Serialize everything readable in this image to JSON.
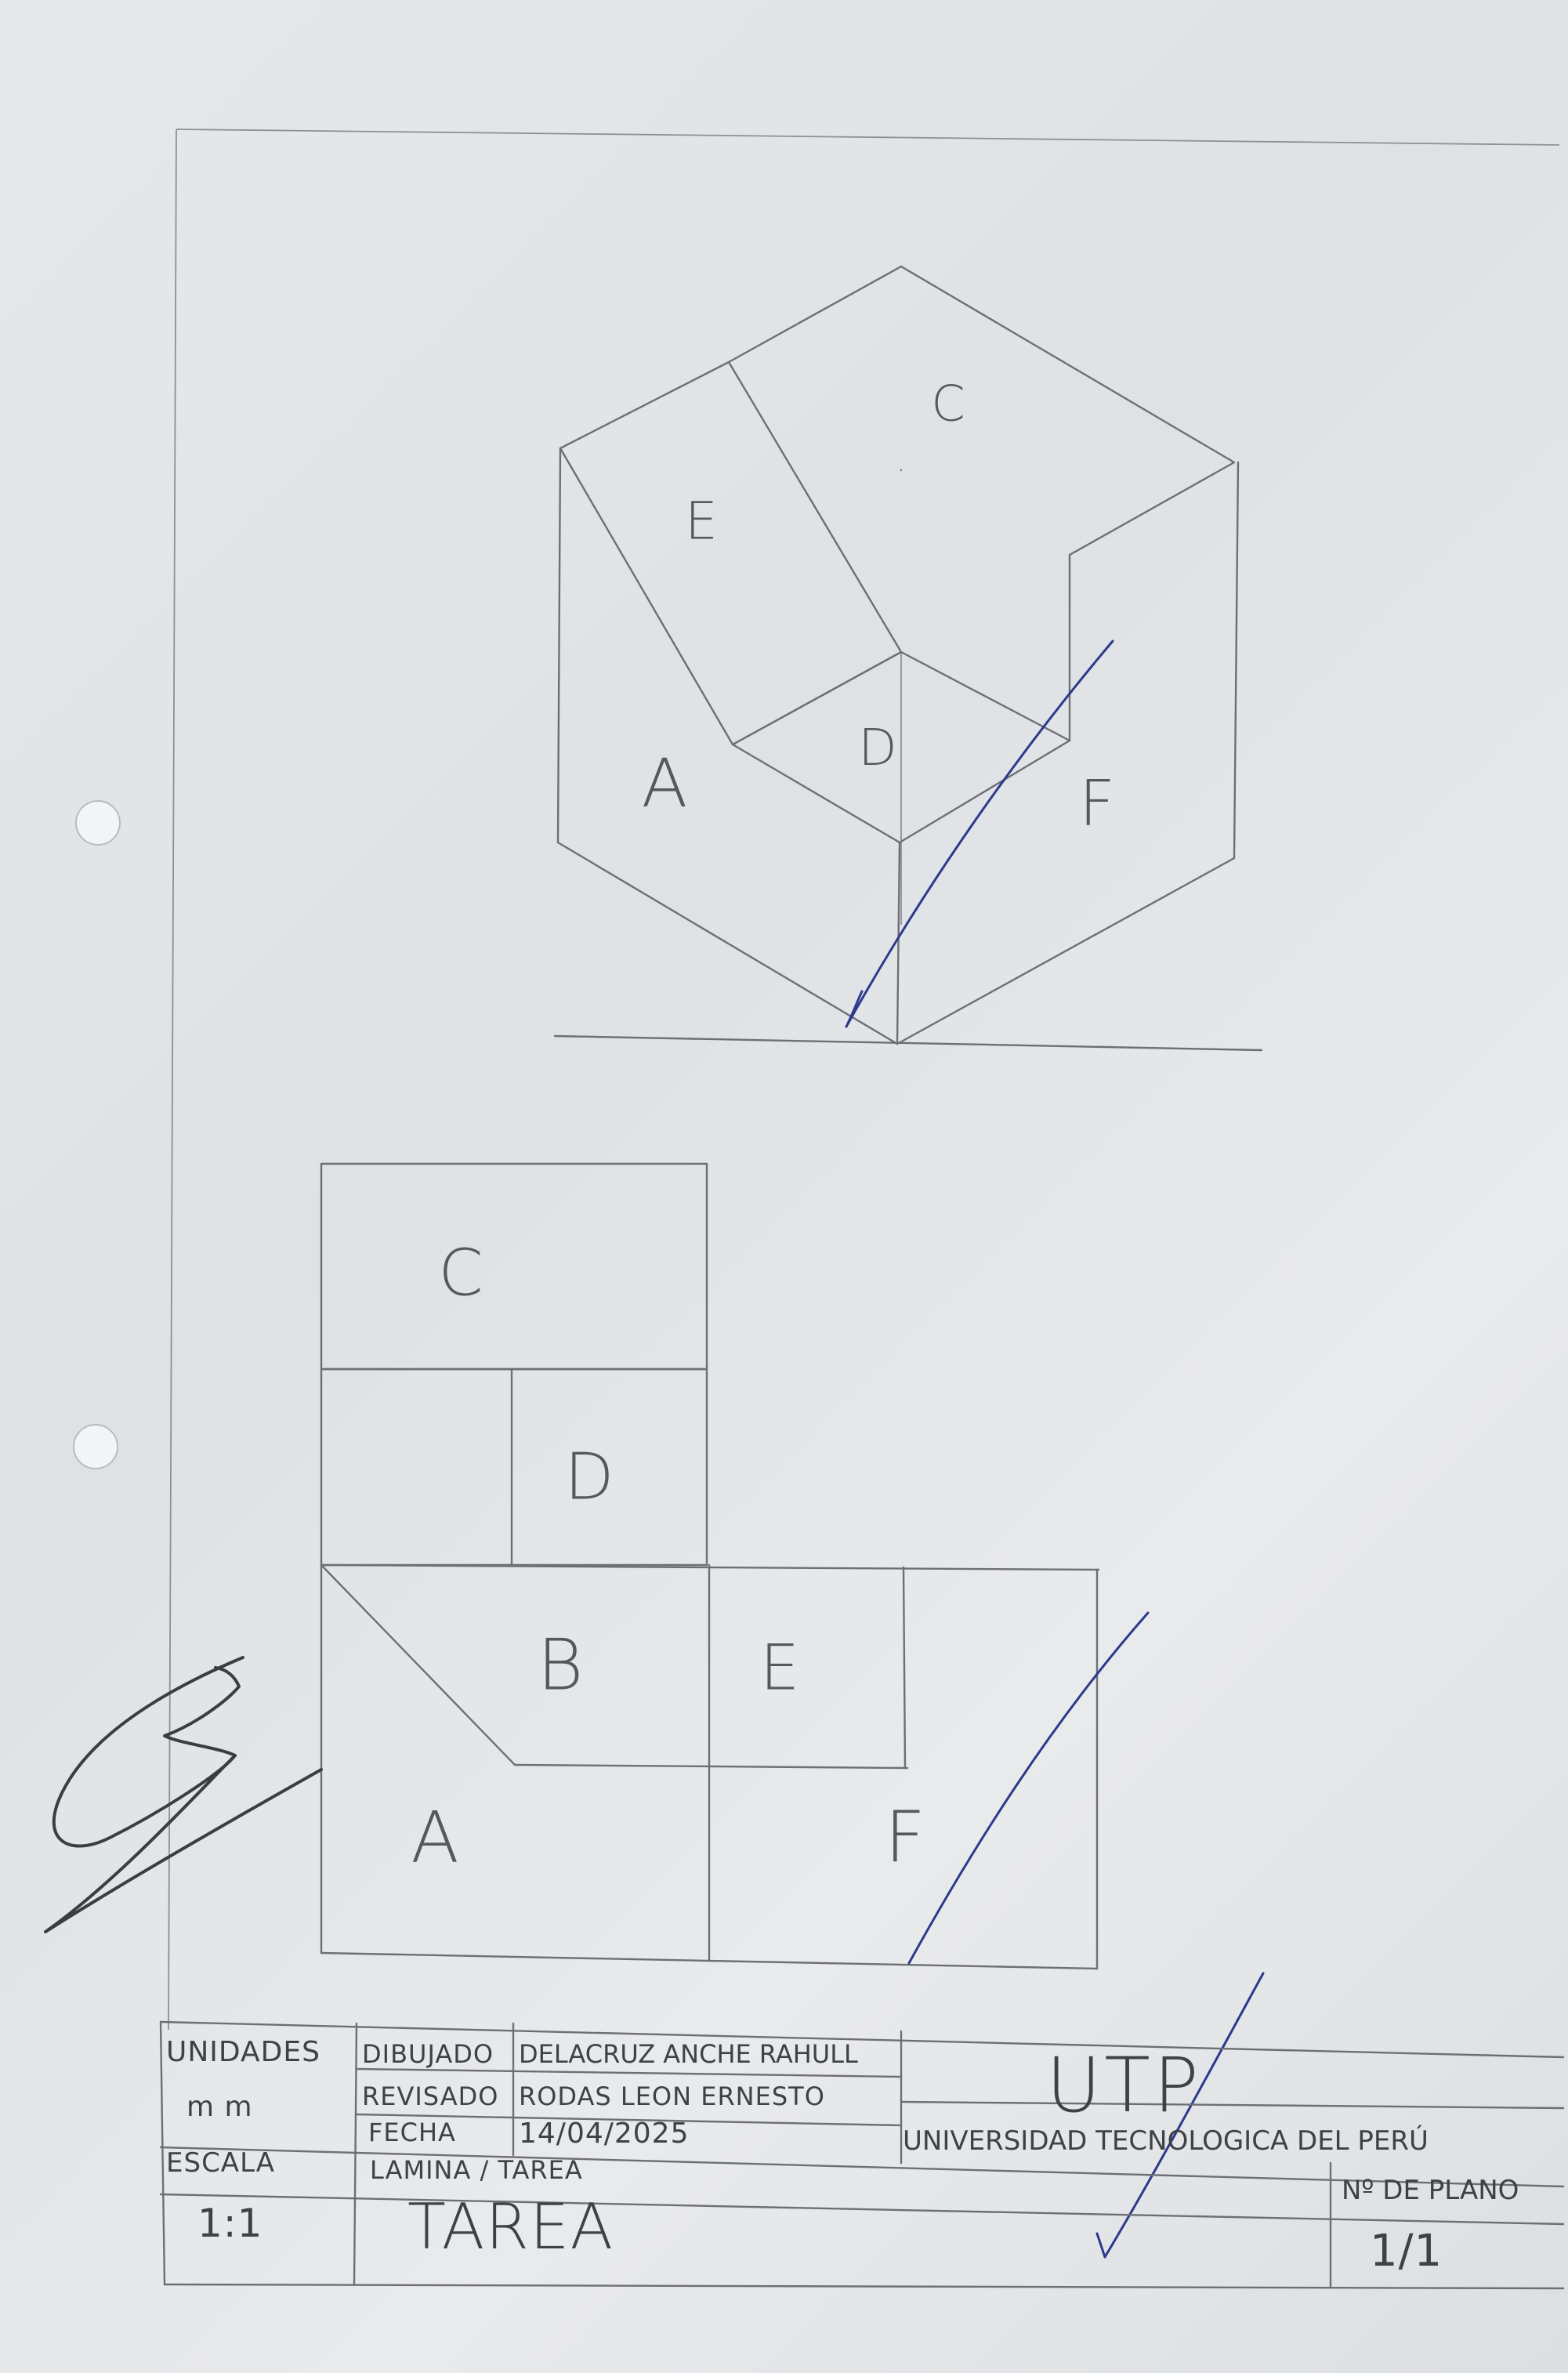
{
  "isometric_view": {
    "face_labels": [
      "C",
      "E",
      "D",
      "A",
      "F"
    ]
  },
  "development_view": {
    "face_labels": [
      "C",
      "D",
      "B",
      "E",
      "A",
      "F"
    ]
  },
  "title_block": {
    "unidades_label": "UNIDADES",
    "unidades_value": "m m",
    "escala_label": "ESCALA",
    "escala_value": "1:1",
    "dibujado_label": "DIBUJADO",
    "dibujado_value": "DELACRUZ ANCHE RAHULL",
    "revisado_label": "REVISADO",
    "revisado_value": "RODAS LEON ERNESTO",
    "fecha_label": "FECHA",
    "fecha_value": "14/04/2025",
    "lamina_label": "LAMINA / TAREA",
    "lamina_value": "TAREA",
    "logo": "UTP",
    "university": "UNIVERSIDAD TECNOLOGICA DEL PERÚ",
    "plano_label": "Nº DE PLANO",
    "plano_value": "1/1"
  },
  "colors": {
    "paper": "#e4e6e8",
    "pencil": "#6d6f73",
    "ink": "#2b3a8c"
  }
}
